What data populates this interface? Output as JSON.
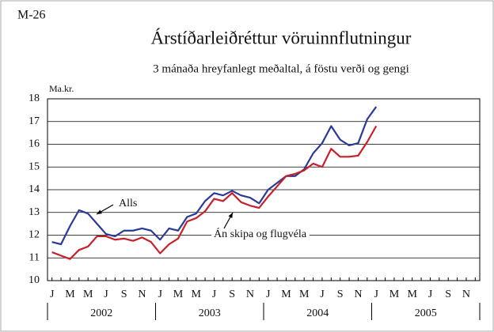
{
  "chart_data": {
    "type": "line",
    "label": "M-26",
    "title": "Árstíðarleiðréttur vöruinnflutningur",
    "subtitle": "3 mánaða hreyfanlegt meðaltal, á föstu verði og gengi",
    "y_label": "Ma.kr.",
    "categories": [
      "J",
      null,
      "M",
      null,
      "M",
      null,
      "J",
      null,
      "S",
      null,
      "N",
      null,
      "J",
      null,
      "M",
      null,
      "M",
      null,
      "J",
      null,
      "S",
      null,
      "N",
      null,
      "J",
      null,
      "M",
      null,
      "M",
      null,
      "J",
      null,
      "S",
      null,
      "N",
      null,
      "J",
      null,
      "M",
      null,
      "M",
      null,
      "J",
      null,
      "S",
      null,
      "N",
      null
    ],
    "years": [
      "2002",
      "2003",
      "2004",
      "2005"
    ],
    "series": [
      {
        "name": "Alls",
        "color": "#2b3a97",
        "values": [
          11.7,
          11.6,
          12.4,
          13.1,
          12.95,
          12.5,
          12.05,
          11.95,
          12.2,
          12.2,
          12.3,
          12.2,
          11.8,
          12.3,
          12.2,
          12.8,
          12.95,
          13.5,
          13.85,
          13.75,
          13.95,
          13.75,
          13.65,
          13.4,
          14.0,
          14.3,
          14.6,
          14.6,
          14.9,
          15.6,
          16.05,
          16.8,
          16.2,
          15.95,
          16.05,
          17.1,
          17.65,
          null,
          null,
          null,
          null,
          null,
          null,
          null,
          null,
          null,
          null,
          null
        ]
      },
      {
        "name": "Án skipa og flugvéla",
        "color": "#c8202a",
        "values": [
          11.25,
          11.1,
          10.95,
          11.35,
          11.5,
          11.95,
          11.95,
          11.8,
          11.85,
          11.75,
          11.9,
          11.7,
          11.2,
          11.6,
          11.85,
          12.6,
          12.75,
          13.05,
          13.6,
          13.5,
          13.85,
          13.45,
          13.3,
          13.2,
          13.7,
          14.15,
          14.6,
          14.7,
          14.85,
          15.15,
          15.0,
          15.8,
          15.45,
          15.45,
          15.5,
          16.1,
          16.8,
          null,
          null,
          null,
          null,
          null,
          null,
          null,
          null,
          null,
          null,
          null
        ]
      }
    ],
    "ylim": [
      10,
      18
    ],
    "yticks": [
      10,
      11,
      12,
      13,
      14,
      15,
      16,
      17,
      18
    ],
    "grid": true
  }
}
